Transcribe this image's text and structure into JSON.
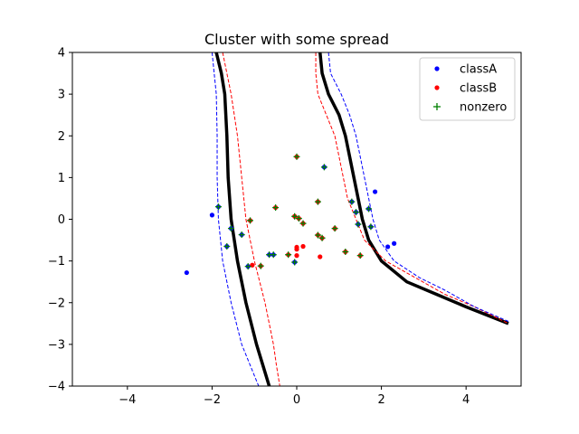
{
  "chart_data": {
    "type": "scatter",
    "title": "Cluster with some spread",
    "xlabel": "",
    "ylabel": "",
    "xlim": [
      -5.3,
      5.3
    ],
    "ylim": [
      -4,
      4
    ],
    "xticks": [
      -4,
      -2,
      0,
      2,
      4
    ],
    "yticks": [
      -4,
      -3,
      -2,
      -1,
      0,
      1,
      2,
      3,
      4
    ],
    "x_tick_labels": [
      "−4",
      "−2",
      "0",
      "2",
      "4"
    ],
    "y_tick_labels": [
      "−4",
      "−3",
      "−2",
      "−1",
      "0",
      "1",
      "2",
      "3",
      "4"
    ],
    "grid": false,
    "legend_position": "top-right",
    "series": [
      {
        "name": "classA",
        "marker": "dot",
        "color": "#0000ff",
        "points": [
          [
            -2.6,
            -1.28
          ],
          [
            -2.0,
            0.1
          ],
          [
            1.85,
            0.66
          ],
          [
            2.15,
            -0.66
          ],
          [
            2.3,
            -0.58
          ],
          [
            -1.85,
            0.3
          ],
          [
            -1.65,
            -0.65
          ],
          [
            -1.55,
            -0.22
          ],
          [
            -1.3,
            -0.37
          ],
          [
            -1.15,
            -1.13
          ],
          [
            -0.65,
            -0.85
          ],
          [
            -0.55,
            -0.85
          ],
          [
            -0.05,
            -1.03
          ],
          [
            0.65,
            1.25
          ],
          [
            1.3,
            0.42
          ],
          [
            1.4,
            0.17
          ],
          [
            1.45,
            -0.12
          ],
          [
            1.7,
            0.25
          ],
          [
            1.75,
            -0.18
          ]
        ]
      },
      {
        "name": "classB",
        "marker": "dot",
        "color": "#ff0000",
        "points": [
          [
            0.0,
            -0.67
          ],
          [
            0.0,
            -0.72
          ],
          [
            0.0,
            -0.87
          ],
          [
            0.15,
            -0.65
          ],
          [
            0.55,
            -0.9
          ],
          [
            -1.05,
            -1.1
          ],
          [
            -0.85,
            -1.12
          ],
          [
            -0.2,
            -0.85
          ],
          [
            -1.1,
            -0.03
          ],
          [
            -0.5,
            0.28
          ],
          [
            -0.05,
            0.07
          ],
          [
            0.05,
            0.02
          ],
          [
            0.0,
            1.5
          ],
          [
            0.15,
            -0.1
          ],
          [
            0.5,
            0.42
          ],
          [
            0.5,
            -0.38
          ],
          [
            0.6,
            -0.45
          ],
          [
            0.9,
            -0.22
          ],
          [
            1.15,
            -0.78
          ],
          [
            1.5,
            -0.87
          ]
        ]
      },
      {
        "name": "nonzero",
        "marker": "plus",
        "color": "#008000",
        "points": [
          [
            -1.85,
            0.3
          ],
          [
            -1.65,
            -0.65
          ],
          [
            -1.55,
            -0.22
          ],
          [
            -1.3,
            -0.37
          ],
          [
            -1.15,
            -1.13
          ],
          [
            -1.1,
            -0.03
          ],
          [
            -0.85,
            -1.12
          ],
          [
            -0.65,
            -0.85
          ],
          [
            -0.55,
            -0.85
          ],
          [
            -0.5,
            0.28
          ],
          [
            -0.2,
            -0.85
          ],
          [
            -0.05,
            0.07
          ],
          [
            -0.05,
            -1.03
          ],
          [
            0.05,
            0.02
          ],
          [
            0.0,
            1.5
          ],
          [
            0.15,
            -0.1
          ],
          [
            0.5,
            0.42
          ],
          [
            0.5,
            -0.38
          ],
          [
            0.6,
            -0.45
          ],
          [
            0.65,
            1.25
          ],
          [
            0.9,
            -0.22
          ],
          [
            1.15,
            -0.78
          ],
          [
            1.3,
            0.42
          ],
          [
            1.4,
            0.17
          ],
          [
            1.45,
            -0.12
          ],
          [
            1.5,
            -0.87
          ],
          [
            1.7,
            0.25
          ],
          [
            1.75,
            -0.18
          ]
        ]
      }
    ],
    "curves": [
      {
        "style": "solid-thick",
        "color": "#000000",
        "points": [
          [
            -1.9,
            4.0
          ],
          [
            -1.78,
            3.5
          ],
          [
            -1.7,
            3.0
          ],
          [
            -1.65,
            2.0
          ],
          [
            -1.62,
            1.0
          ],
          [
            -1.55,
            0.0
          ],
          [
            -1.4,
            -1.0
          ],
          [
            -1.2,
            -2.0
          ],
          [
            -0.95,
            -3.0
          ],
          [
            -0.8,
            -3.5
          ],
          [
            -0.65,
            -4.0
          ]
        ]
      },
      {
        "style": "solid-thick",
        "color": "#000000",
        "points": [
          [
            0.55,
            4.0
          ],
          [
            0.6,
            3.5
          ],
          [
            0.75,
            3.0
          ],
          [
            1.0,
            2.5
          ],
          [
            1.15,
            2.0
          ],
          [
            1.35,
            1.0
          ],
          [
            1.55,
            0.0
          ],
          [
            1.7,
            -0.5
          ],
          [
            2.0,
            -1.0
          ],
          [
            2.6,
            -1.5
          ],
          [
            3.3,
            -1.8
          ],
          [
            4.0,
            -2.1
          ],
          [
            5.0,
            -2.5
          ]
        ]
      },
      {
        "style": "dashed",
        "color": "#0000ff",
        "points": [
          [
            -2.0,
            4.0
          ],
          [
            -1.95,
            3.5
          ],
          [
            -1.9,
            3.0
          ],
          [
            -1.88,
            2.0
          ],
          [
            -1.88,
            1.0
          ],
          [
            -1.85,
            0.0
          ],
          [
            -1.75,
            -1.0
          ],
          [
            -1.55,
            -2.0
          ],
          [
            -1.3,
            -3.0
          ],
          [
            -1.1,
            -3.5
          ],
          [
            -0.9,
            -4.0
          ]
        ]
      },
      {
        "style": "dashed",
        "color": "#ff0000",
        "points": [
          [
            -1.75,
            4.0
          ],
          [
            -1.55,
            3.0
          ],
          [
            -1.4,
            2.0
          ],
          [
            -1.3,
            1.0
          ],
          [
            -1.2,
            0.0
          ],
          [
            -1.0,
            -1.0
          ],
          [
            -0.75,
            -2.0
          ],
          [
            -0.55,
            -3.0
          ],
          [
            -0.48,
            -3.5
          ],
          [
            -0.4,
            -4.0
          ]
        ]
      },
      {
        "style": "dashed",
        "color": "#ff0000",
        "points": [
          [
            0.45,
            4.0
          ],
          [
            0.45,
            3.5
          ],
          [
            0.5,
            3.0
          ],
          [
            0.7,
            2.5
          ],
          [
            0.9,
            2.0
          ],
          [
            1.0,
            1.5
          ],
          [
            1.1,
            1.0
          ],
          [
            1.2,
            0.5
          ],
          [
            1.4,
            0.0
          ],
          [
            1.6,
            -0.5
          ],
          [
            2.1,
            -1.0
          ],
          [
            2.8,
            -1.4
          ],
          [
            3.5,
            -1.8
          ],
          [
            4.2,
            -2.1
          ],
          [
            5.0,
            -2.5
          ]
        ]
      },
      {
        "style": "dashed",
        "color": "#0000ff",
        "points": [
          [
            0.75,
            4.0
          ],
          [
            0.8,
            3.5
          ],
          [
            1.05,
            3.0
          ],
          [
            1.25,
            2.5
          ],
          [
            1.4,
            2.0
          ],
          [
            1.6,
            1.0
          ],
          [
            1.8,
            0.0
          ],
          [
            1.95,
            -0.5
          ],
          [
            2.3,
            -1.0
          ],
          [
            2.9,
            -1.4
          ],
          [
            3.5,
            -1.7
          ],
          [
            4.2,
            -2.1
          ],
          [
            5.0,
            -2.45
          ]
        ]
      }
    ]
  }
}
